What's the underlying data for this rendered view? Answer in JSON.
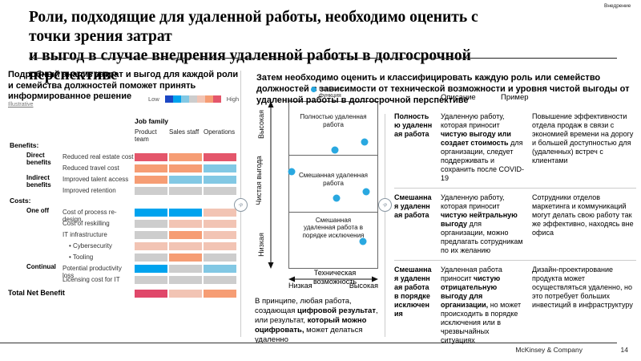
{
  "meta": {
    "corner_tag": "Внедрение",
    "footer_brand": "McKinsey & Company",
    "page_number": "14"
  },
  "title": {
    "lines": [
      "Роли, подходящие для удаленной работы, необходимо оценить с",
      "точки зрения затрат",
      "и выгод в случае внедрения удаленной работы в долгосрочной",
      "перспективе"
    ]
  },
  "nav": {
    "expand_icon": "»"
  },
  "left_panel": {
    "intro": "Подробный анализ затрат и выгод для каждой роли и семейства должностей поможет принять информированное решение",
    "tag": "Illustrative",
    "legend": {
      "low": "Low",
      "high": "High",
      "colors": [
        "#1c47c4",
        "#00a3ee",
        "#82c8e4",
        "#cdcdcd",
        "#f2c4b4",
        "#f69d74",
        "#e4566b"
      ]
    },
    "heatmap": {
      "title": "Job family",
      "columns": [
        "Product team",
        "Sales staff",
        "Operations"
      ],
      "palette": {
        "blue": "#00a3ee",
        "lightblue": "#82c8e4",
        "gray": "#cdcdcd",
        "pink": "#f2c4b4",
        "salmon": "#f69d74",
        "red": "#e4566b",
        "crimson": "#e0486a"
      },
      "rows": [
        {
          "type": "section",
          "label": "Benefits:"
        },
        {
          "type": "data",
          "group": "Direct benefits",
          "label": "Reduced real estate cost",
          "cells": [
            "red",
            "salmon",
            "red"
          ]
        },
        {
          "type": "data",
          "group": "",
          "label": "Reduced travel cost",
          "cells": [
            "salmon",
            "salmon",
            "lightblue"
          ]
        },
        {
          "type": "data",
          "group": "Indirect benefits",
          "label": "Improved talent access",
          "cells": [
            "salmon",
            "lightblue",
            "lightblue"
          ]
        },
        {
          "type": "data",
          "group": "",
          "label": "Improved retention",
          "cells": [
            "gray",
            "gray",
            "gray"
          ]
        },
        {
          "type": "section",
          "label": "Costs:"
        },
        {
          "type": "data",
          "group": "One off",
          "label": "Cost of process re-design",
          "cells": [
            "blue",
            "blue",
            "pink"
          ]
        },
        {
          "type": "data",
          "group": "",
          "label": "Cost of reskilling",
          "cells": [
            "gray",
            "pink",
            "pink"
          ]
        },
        {
          "type": "data",
          "group": "",
          "label": "IT infrastructure",
          "cells": [
            "gray",
            "salmon",
            "pink"
          ]
        },
        {
          "type": "data",
          "group": "",
          "label": "Cybersecurity",
          "bullet": true,
          "cells": [
            "pink",
            "pink",
            "pink"
          ]
        },
        {
          "type": "data",
          "group": "",
          "label": "Tooling",
          "bullet": true,
          "cells": [
            "gray",
            "salmon",
            "gray"
          ]
        },
        {
          "type": "data",
          "group": "Continual",
          "label": "Potential productivity loss",
          "cells": [
            "blue",
            "gray",
            "lightblue"
          ]
        },
        {
          "type": "data",
          "group": "",
          "label": "Licensing cost for IT",
          "cells": [
            "gray",
            "gray",
            "gray"
          ]
        },
        {
          "type": "total",
          "label": "Total Net Benefit",
          "cells": [
            "crimson",
            "pink",
            "salmon"
          ]
        }
      ]
    }
  },
  "middle_panel": {
    "header": "Затем необходимо оценить и классифицировать каждую роль или семейство должностей в зависимости от технической возможности и уровня чистой выгоды от удаленной работы в долгосрочной перспективе",
    "scatter": {
      "legend_label": "Роль или функция",
      "dot_color": "#29a8e0",
      "y_axis": {
        "high": "Высокая",
        "label": "Чистая выгода",
        "low": "Низкая"
      },
      "x_axis": {
        "low": "Низкая",
        "label": "Техническая возможность",
        "high": "Высокая"
      },
      "bands": [
        "Полностью удаленная работа",
        "Смешанная удаленная работа",
        "Смешанная удаленная работа в порядке исключения"
      ],
      "dots": [
        {
          "x": 52,
          "y": 29
        },
        {
          "x": 85,
          "y": 24
        },
        {
          "x": 3,
          "y": 42
        },
        {
          "x": 87,
          "y": 54
        },
        {
          "x": 54,
          "y": 58
        },
        {
          "x": 84,
          "y": 84
        }
      ]
    },
    "footnote": [
      {
        "t": "В принципе, любая работа, создающая "
      },
      {
        "t": "цифровой результат",
        "b": true
      },
      {
        "t": ", или результат, "
      },
      {
        "t": "который можно оцифровать,",
        "b": true
      },
      {
        "t": " может делаться удаленно"
      }
    ]
  },
  "right_table": {
    "headers": {
      "description": "Описание",
      "example": "Пример"
    },
    "rows": [
      {
        "role": "Полностью удаленная работа",
        "description": [
          {
            "t": "Удаленную работу, которая приносит "
          },
          {
            "t": "чистую выгоду или создает стоимость",
            "b": true
          },
          {
            "t": " для организации, следует поддерживать и сохранить после COVID-19"
          }
        ],
        "example": "Повышение эффективности отдела продаж в связи с экономией времени на дорогу и большей доступностью для (удаленных) встреч с клиентами"
      },
      {
        "role": "Смешанная удаленная работа",
        "description": [
          {
            "t": "Удаленную работу, которая приносит "
          },
          {
            "t": "чистую нейтральную выгоду",
            "b": true
          },
          {
            "t": " для организации, можно предлагать сотрудникам по их желанию"
          }
        ],
        "example": "Сотрудники отделов маркетинга и коммуникаций могут делать свою работу так же эффективно, находясь вне офиса"
      },
      {
        "role": "Смешанная удаленная работа в порядке исключения",
        "description": [
          {
            "t": "Удаленная работа приносит "
          },
          {
            "t": "чистую отрицательную выгоду для организации,",
            "b": true
          },
          {
            "t": " но может происходить в порядке исключения или в чрезвычайных ситуациях"
          }
        ],
        "example": "Дизайн-проектирование продукта может осуществляться удаленно, но это потребует больших инвестиций в инфраструктуру"
      }
    ]
  }
}
